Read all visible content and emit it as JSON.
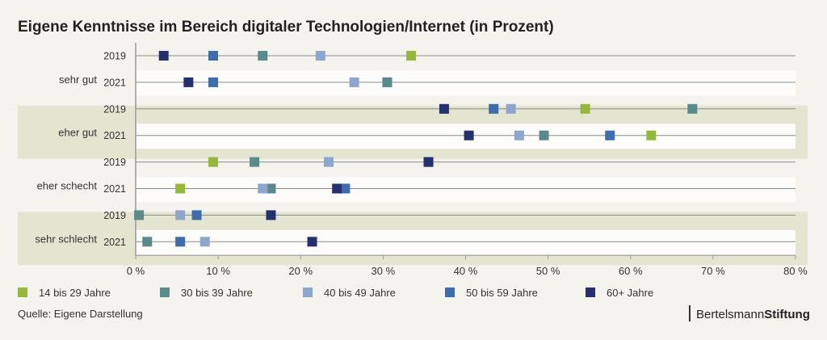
{
  "chart_data": {
    "type": "scatter",
    "title": "Eigene Kenntnisse im Bereich digitaler Technologien/Internet (in Prozent)",
    "xlim": [
      0,
      80
    ],
    "xticks": [
      "0 %",
      "10 %",
      "20 %",
      "30 %",
      "40 %",
      "50 %",
      "60 %",
      "70 %",
      "80 %"
    ],
    "xtick_values": [
      0,
      10,
      20,
      30,
      40,
      50,
      60,
      70,
      80
    ],
    "grid": false,
    "legend_position": "bottom",
    "series": [
      {
        "name": "14 bis 29 Jahre",
        "color": "#95b83c"
      },
      {
        "name": "30 bis 39 Jahre",
        "color": "#5b8a8a"
      },
      {
        "name": "40 bis 49 Jahre",
        "color": "#8ea6cd"
      },
      {
        "name": "50 bis 59 Jahre",
        "color": "#3f6cab"
      },
      {
        "name": "60+ Jahre",
        "color": "#25306f"
      }
    ],
    "groups": [
      {
        "label": "sehr gut",
        "shaded": false,
        "rows": [
          {
            "year": "2019",
            "values": [
              33.4,
              15.4,
              22.4,
              9.4,
              3.4
            ]
          },
          {
            "year": "2021",
            "values": [
              30.5,
              30.5,
              26.5,
              9.4,
              6.4
            ]
          }
        ]
      },
      {
        "label": "eher gut",
        "shaded": true,
        "rows": [
          {
            "year": "2019",
            "values": [
              54.5,
              67.5,
              45.5,
              43.4,
              37.4
            ]
          },
          {
            "year": "2021",
            "values": [
              62.5,
              49.5,
              46.5,
              57.5,
              40.4
            ]
          }
        ]
      },
      {
        "label": "eher schecht",
        "shaded": false,
        "rows": [
          {
            "year": "2019",
            "values": [
              9.4,
              14.4,
              23.4,
              35.5,
              35.5
            ]
          },
          {
            "year": "2021",
            "values": [
              5.4,
              16.4,
              15.4,
              25.4,
              24.4
            ]
          }
        ]
      },
      {
        "label": "sehr schlecht",
        "shaded": true,
        "rows": [
          {
            "year": "2019",
            "values": [
              null,
              0.4,
              5.4,
              7.4,
              16.4
            ]
          },
          {
            "year": "2021",
            "values": [
              null,
              1.4,
              8.4,
              5.4,
              21.4
            ]
          }
        ]
      }
    ]
  },
  "source": "Quelle: Eigene Darstellung",
  "logo": {
    "part1": "Bertelsmann",
    "part2": "Stiftung"
  },
  "colors": {
    "background": "#f4f3ee",
    "band": "#e3e5d1",
    "row_white": "#fcfcfa"
  }
}
